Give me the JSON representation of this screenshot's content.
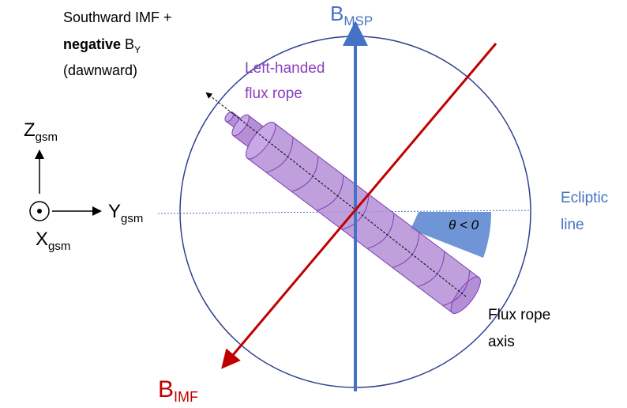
{
  "labels": {
    "imf_direction": {
      "line1": "Southward IMF +",
      "bold": "negative",
      "b": "B",
      "b_sub": "Y",
      "line3": "(dawnward)"
    },
    "b_msp": {
      "main": "B",
      "sub": "MSP"
    },
    "flux_rope": {
      "line1": "Left-handed",
      "line2": "flux rope"
    },
    "axes": {
      "z": {
        "main": "Z",
        "sub": "gsm"
      },
      "y": {
        "main": "Y",
        "sub": "gsm"
      },
      "x": {
        "main": "X",
        "sub": "gsm"
      }
    },
    "ecliptic": {
      "line1": "Ecliptic",
      "line2": "line"
    },
    "theta": "θ < 0",
    "rope_axis": {
      "line1": "Flux rope",
      "line2": "axis"
    },
    "b_imf": {
      "main": "B",
      "sub": "IMF"
    }
  }
}
